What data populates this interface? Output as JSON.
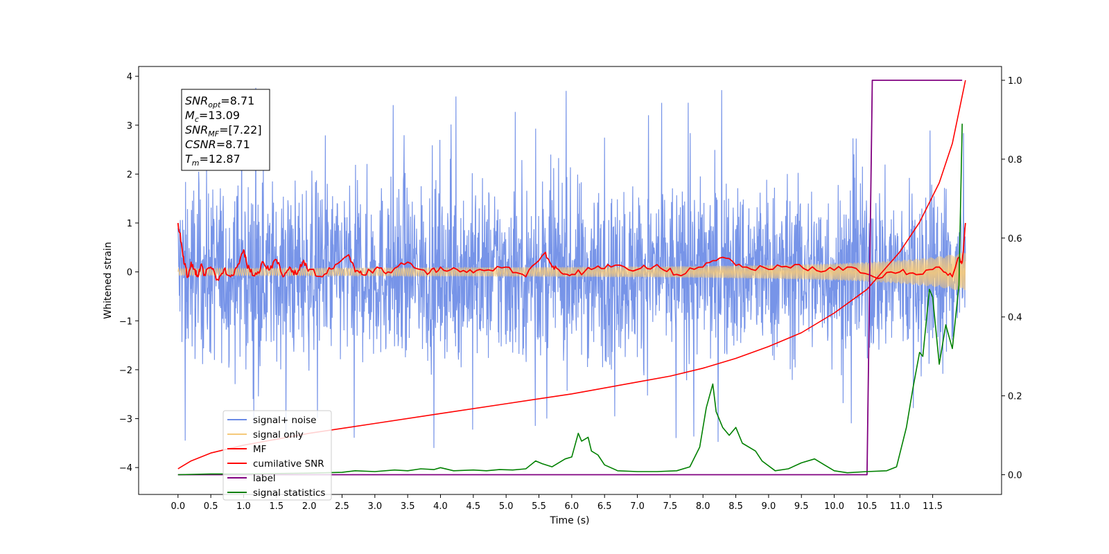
{
  "chart_data": {
    "type": "line",
    "title": "",
    "xlabel": "Time (s)",
    "ylabel": "Whitened strain",
    "xlim": [
      -0.6,
      12.55
    ],
    "ylim": [
      -4.55,
      4.2
    ],
    "y2lim": [
      -0.05,
      1.035
    ],
    "x_ticks": [
      "0.0",
      "0.5",
      "1.0",
      "1.5",
      "2.0",
      "2.5",
      "3.0",
      "3.5",
      "4.0",
      "4.5",
      "5.0",
      "5.5",
      "6.0",
      "6.5",
      "7.0",
      "7.5",
      "8.0",
      "8.5",
      "9.0",
      "9.5",
      "10.0",
      "10.5",
      "11.0",
      "11.5"
    ],
    "y_ticks": [
      "−4",
      "−3",
      "−2",
      "−1",
      "0",
      "1",
      "2",
      "3",
      "4"
    ],
    "y2_ticks": [
      "0.0",
      "0.2",
      "0.4",
      "0.6",
      "0.8",
      "1.0"
    ],
    "legend_position": "lower-left",
    "grid": false,
    "annotation": [
      {
        "base": "SNR",
        "sub": "opt",
        "rest": "=8.71"
      },
      {
        "base": "M",
        "sub": "c",
        "rest": "=13.09"
      },
      {
        "base": "SNR",
        "sub": "MF",
        "rest": "=[7.22]"
      },
      {
        "base": "CSNR",
        "sub": "",
        "rest": "=8.71"
      },
      {
        "base": "T",
        "sub": "m",
        "rest": "=12.87"
      }
    ],
    "series": [
      {
        "name": "signal+ noise",
        "axis": "left",
        "color": "#6b8be6",
        "x_range": [
          0.0,
          12.0
        ],
        "envelope_typical": [
          -1.5,
          1.5
        ],
        "envelope_extreme": [
          -3.6,
          3.8
        ]
      },
      {
        "name": "signal only",
        "axis": "left",
        "color": "#f5c97a",
        "x": [
          0.0,
          2.0,
          4.0,
          6.0,
          8.0,
          9.0,
          10.0,
          10.5,
          11.0,
          11.5,
          12.0
        ],
        "amplitude": [
          0.07,
          0.08,
          0.09,
          0.1,
          0.12,
          0.14,
          0.17,
          0.2,
          0.24,
          0.3,
          0.4
        ]
      },
      {
        "name": "MF",
        "axis": "left",
        "color": "#ff0000",
        "x": [
          0.0,
          0.05,
          0.1,
          0.15,
          0.2,
          0.25,
          0.3,
          0.35,
          0.4,
          0.5,
          0.6,
          0.7,
          0.8,
          0.9,
          1.0,
          1.05,
          1.1,
          1.2,
          1.3,
          1.4,
          1.5,
          1.6,
          1.7,
          1.8,
          1.9,
          2.0,
          2.2,
          2.4,
          2.6,
          2.7,
          2.8,
          3.0,
          3.2,
          3.5,
          3.8,
          4.0,
          4.3,
          4.6,
          5.0,
          5.3,
          5.6,
          5.7,
          5.8,
          6.0,
          6.3,
          6.6,
          7.0,
          7.3,
          7.6,
          8.0,
          8.3,
          8.6,
          9.0,
          9.4,
          9.8,
          10.2,
          10.6,
          11.0,
          11.3,
          11.6,
          11.8,
          11.9,
          11.95,
          12.0
        ],
        "y": [
          1.0,
          0.6,
          0.15,
          -0.1,
          0.2,
          0.05,
          -0.1,
          0.15,
          -0.05,
          0.1,
          -0.15,
          0.05,
          -0.1,
          0.1,
          0.45,
          0.15,
          0.0,
          -0.05,
          0.2,
          0.05,
          0.25,
          -0.1,
          0.1,
          -0.05,
          0.2,
          0.05,
          -0.1,
          0.15,
          0.35,
          0.0,
          -0.05,
          0.05,
          0.0,
          0.2,
          -0.05,
          0.1,
          0.0,
          0.05,
          0.1,
          -0.1,
          0.4,
          0.1,
          0.05,
          -0.05,
          0.05,
          0.1,
          0.05,
          0.15,
          -0.05,
          0.1,
          0.3,
          0.1,
          0.05,
          0.15,
          0.0,
          0.1,
          -0.1,
          0.0,
          -0.05,
          0.1,
          -0.1,
          0.3,
          0.2,
          1.0
        ]
      },
      {
        "name": "cumilative SNR",
        "axis": "right",
        "color": "#ff0000",
        "x": [
          0.0,
          0.05,
          0.2,
          0.5,
          1.0,
          1.5,
          2.0,
          3.0,
          4.0,
          5.0,
          6.0,
          7.0,
          7.5,
          8.0,
          8.5,
          9.0,
          9.5,
          10.0,
          10.5,
          11.0,
          11.3,
          11.6,
          11.8,
          12.0
        ],
        "y": [
          0.015,
          0.02,
          0.035,
          0.055,
          0.075,
          0.09,
          0.105,
          0.13,
          0.155,
          0.18,
          0.205,
          0.235,
          0.25,
          0.27,
          0.295,
          0.325,
          0.36,
          0.41,
          0.47,
          0.565,
          0.64,
          0.74,
          0.84,
          1.0
        ]
      },
      {
        "name": "label",
        "axis": "right",
        "color": "#800080",
        "x": [
          0.0,
          10.5,
          10.58,
          11.95
        ],
        "y": [
          0.0,
          0.0,
          1.0,
          1.0
        ]
      },
      {
        "name": "signal statistics",
        "axis": "right",
        "color": "#008000",
        "x": [
          0.0,
          0.5,
          1.0,
          1.5,
          2.0,
          2.5,
          2.7,
          3.0,
          3.3,
          3.5,
          3.7,
          3.9,
          4.0,
          4.2,
          4.5,
          4.7,
          4.9,
          5.1,
          5.3,
          5.45,
          5.55,
          5.7,
          5.9,
          6.0,
          6.1,
          6.15,
          6.25,
          6.3,
          6.4,
          6.5,
          6.7,
          7.0,
          7.3,
          7.6,
          7.8,
          7.95,
          8.05,
          8.15,
          8.2,
          8.3,
          8.4,
          8.5,
          8.6,
          8.8,
          8.9,
          9.1,
          9.3,
          9.5,
          9.7,
          9.85,
          10.0,
          10.2,
          10.5,
          10.8,
          10.95,
          11.1,
          11.2,
          11.3,
          11.35,
          11.45,
          11.5,
          11.6,
          11.7,
          11.8,
          11.9,
          11.95
        ],
        "y": [
          0.0,
          0.002,
          0.002,
          0.003,
          0.004,
          0.006,
          0.01,
          0.008,
          0.012,
          0.01,
          0.015,
          0.013,
          0.018,
          0.01,
          0.012,
          0.01,
          0.013,
          0.012,
          0.015,
          0.035,
          0.028,
          0.02,
          0.04,
          0.045,
          0.105,
          0.085,
          0.095,
          0.06,
          0.05,
          0.025,
          0.01,
          0.008,
          0.008,
          0.01,
          0.02,
          0.07,
          0.17,
          0.23,
          0.16,
          0.12,
          0.1,
          0.12,
          0.08,
          0.06,
          0.035,
          0.01,
          0.015,
          0.03,
          0.04,
          0.025,
          0.01,
          0.005,
          0.008,
          0.01,
          0.02,
          0.12,
          0.22,
          0.31,
          0.3,
          0.47,
          0.45,
          0.28,
          0.38,
          0.32,
          0.48,
          0.89
        ]
      }
    ]
  }
}
